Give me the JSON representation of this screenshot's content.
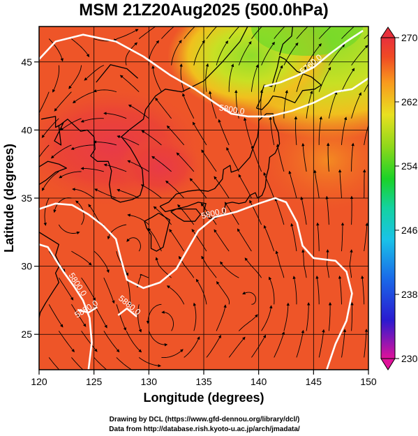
{
  "chart_data": {
    "type": "heatmap",
    "title": "MSM 21Z20Aug2025 (500.0hPa)",
    "xlabel": "Longitude (degrees)",
    "ylabel": "Latitude  (degrees)",
    "xlim": [
      120,
      150
    ],
    "ylim": [
      22.4,
      47.6
    ],
    "x_ticks": [
      "120",
      "125",
      "130",
      "135",
      "140",
      "145",
      "150"
    ],
    "y_ticks": [
      "25",
      "30",
      "35",
      "40",
      "45"
    ],
    "colorbar": {
      "min": 230,
      "max": 270,
      "ticks": [
        "270",
        "262",
        "254",
        "246",
        "238",
        "230"
      ],
      "colors": [
        "#e0129a",
        "#1a1ad0",
        "#1aa9e8",
        "#14d2a8",
        "#19d21e",
        "#8ed81a",
        "#e8e020",
        "#f89a1e",
        "#f04a24",
        "#e8303c"
      ]
    },
    "contours": [
      {
        "label": "5800.0",
        "points": [
          [
            120,
            34.2
          ],
          [
            121.5,
            34.6
          ],
          [
            123,
            34.5
          ],
          [
            124.5,
            33.8
          ],
          [
            125.8,
            33
          ],
          [
            127,
            32
          ],
          [
            127.5,
            30.4
          ],
          [
            128,
            29
          ],
          [
            129.5,
            28.4
          ],
          [
            131,
            28.8
          ],
          [
            132.5,
            29.8
          ],
          [
            133.5,
            31.2
          ],
          [
            134.5,
            32.6
          ],
          [
            136,
            33.6
          ],
          [
            138,
            34
          ],
          [
            140,
            34.6
          ],
          [
            141.5,
            35
          ],
          [
            142.5,
            34.7
          ],
          [
            143.5,
            33.2
          ],
          [
            144,
            31.5
          ],
          [
            145,
            30.6
          ],
          [
            147,
            30.4
          ],
          [
            148,
            29.6
          ],
          [
            148.5,
            28
          ],
          [
            148,
            26
          ],
          [
            147,
            24.3
          ],
          [
            146.2,
            22.4
          ]
        ]
      },
      {
        "label": "5800.0",
        "points": [
          [
            120,
            31.6
          ],
          [
            120.8,
            31.4
          ],
          [
            121.5,
            30.5
          ],
          [
            122.3,
            29.5
          ],
          [
            123.2,
            28.5
          ],
          [
            124,
            27.5
          ],
          [
            124.6,
            26.2
          ],
          [
            124.8,
            24.4
          ],
          [
            124.5,
            22.4
          ]
        ]
      },
      {
        "label": "5800.0",
        "points": [
          [
            120,
            45.2
          ],
          [
            121.5,
            46.5
          ],
          [
            124,
            47
          ],
          [
            127,
            46.5
          ],
          [
            129.5,
            45.4
          ],
          [
            132,
            44
          ],
          [
            134.2,
            43
          ],
          [
            136,
            42
          ],
          [
            137.5,
            41.2
          ],
          [
            139,
            41
          ],
          [
            141,
            41
          ],
          [
            143,
            41.4
          ],
          [
            145,
            42
          ],
          [
            147,
            42.8
          ],
          [
            148.5,
            43
          ],
          [
            150,
            43.8
          ]
        ]
      },
      {
        "label": "5760.0",
        "points": [
          [
            140.5,
            43.2
          ],
          [
            142,
            43.5
          ],
          [
            143.5,
            44
          ],
          [
            145,
            44.6
          ],
          [
            146.5,
            45.6
          ],
          [
            148,
            46.5
          ],
          [
            149.5,
            47.3
          ]
        ]
      },
      {
        "label": "5880.0",
        "points": [
          [
            123.5,
            26.8
          ],
          [
            124.5,
            26.6
          ],
          [
            125.3,
            27
          ]
        ]
      },
      {
        "label": "5880.0",
        "points": [
          [
            127.2,
            26.4
          ],
          [
            128,
            26.9
          ],
          [
            128.9,
            26.3
          ]
        ]
      }
    ],
    "vortices": [
      {
        "lon": 122.5,
        "lat": 33.8,
        "lat_span": 3.0
      },
      {
        "lon": 128.7,
        "lat": 31.5,
        "lat_span": 2.2
      },
      {
        "lon": 131.5,
        "lat": 25.6,
        "lat_span": 3.5
      },
      {
        "lon": 139.5,
        "lat": 27.5,
        "lat_span": 2.5
      }
    ],
    "coastlines": [
      [
        [
          120.2,
          40.8
        ],
        [
          121.5,
          41
        ],
        [
          121.5,
          40.2
        ],
        [
          122.2,
          40.5
        ],
        [
          121.4,
          39.2
        ],
        [
          122,
          38.9
        ],
        [
          121.8,
          40.3
        ],
        [
          122.6,
          40.8
        ],
        [
          123.8,
          39.9
        ],
        [
          124.4,
          40
        ],
        [
          125,
          39.5
        ],
        [
          125.1,
          38.6
        ],
        [
          124.7,
          38.1
        ],
        [
          125.3,
          37.7
        ],
        [
          126.3,
          37.7
        ],
        [
          126.6,
          37
        ],
        [
          126.4,
          36
        ],
        [
          126.6,
          35
        ],
        [
          127.4,
          34.7
        ],
        [
          128.5,
          34.9
        ],
        [
          129.2,
          35.2
        ],
        [
          129.5,
          36
        ],
        [
          129.4,
          37.1
        ],
        [
          128.8,
          38
        ],
        [
          128.3,
          38.7
        ],
        [
          127.5,
          39.5
        ],
        [
          128.2,
          40
        ],
        [
          129.5,
          40.8
        ],
        [
          129.7,
          41.5
        ],
        [
          130.6,
          42.5
        ],
        [
          131.5,
          43
        ],
        [
          133,
          42.8
        ],
        [
          135,
          43.6
        ],
        [
          136.7,
          45
        ],
        [
          138.3,
          46.5
        ],
        [
          139,
          47.6
        ]
      ],
      [
        [
          120,
          36
        ],
        [
          120.6,
          36.3
        ],
        [
          121.5,
          36.9
        ],
        [
          122.5,
          37.2
        ],
        [
          121.8,
          37.5
        ],
        [
          120.8,
          37.7
        ],
        [
          119.8,
          37.2
        ]
      ],
      [
        [
          120,
          32.5
        ],
        [
          121,
          32
        ],
        [
          121.8,
          31.6
        ],
        [
          121.5,
          30.8
        ],
        [
          121.9,
          30.1
        ],
        [
          121.5,
          29.5
        ],
        [
          121.8,
          28.8
        ],
        [
          121.3,
          28.2
        ],
        [
          120.6,
          27.3
        ],
        [
          120.1,
          26.6
        ],
        [
          120,
          26.2
        ]
      ],
      [
        [
          130.9,
          33.9
        ],
        [
          131.9,
          33.4
        ],
        [
          131.6,
          32.4
        ],
        [
          131.3,
          31.4
        ],
        [
          130.7,
          31.1
        ],
        [
          130.2,
          31.3
        ],
        [
          130.2,
          32.3
        ],
        [
          129.8,
          32.8
        ],
        [
          129.6,
          33.3
        ],
        [
          130.3,
          33.6
        ],
        [
          130.9,
          33.9
        ]
      ],
      [
        [
          132.0,
          34
        ],
        [
          132.6,
          33.6
        ],
        [
          133.2,
          33.3
        ],
        [
          134.2,
          33.3
        ],
        [
          134.7,
          33.8
        ],
        [
          134.3,
          34.2
        ],
        [
          133.5,
          34.2
        ],
        [
          132.5,
          34.2
        ],
        [
          132.0,
          34
        ]
      ],
      [
        [
          131,
          34.4
        ],
        [
          131.8,
          34.7
        ],
        [
          132.5,
          35.3
        ],
        [
          133.5,
          35.5
        ],
        [
          134.5,
          35.6
        ],
        [
          135.4,
          35.5
        ],
        [
          136,
          35.7
        ],
        [
          136.7,
          36.4
        ],
        [
          136.8,
          37.1
        ],
        [
          137.4,
          37.4
        ],
        [
          137.5,
          36.9
        ],
        [
          138.2,
          37.1
        ],
        [
          139.2,
          38
        ],
        [
          139.5,
          38.7
        ],
        [
          139.9,
          39.5
        ],
        [
          140,
          40.2
        ],
        [
          140,
          40.7
        ],
        [
          140.7,
          41.2
        ],
        [
          141.3,
          41.2
        ],
        [
          141.4,
          40.6
        ],
        [
          141.8,
          39.8
        ],
        [
          141.9,
          39
        ],
        [
          141.5,
          38.3
        ],
        [
          141,
          38
        ],
        [
          140.9,
          37.2
        ],
        [
          140.7,
          36.6
        ],
        [
          140.6,
          35.8
        ],
        [
          140.3,
          35.2
        ],
        [
          139.9,
          35
        ],
        [
          139.7,
          35.4
        ],
        [
          139.2,
          35.2
        ],
        [
          138.8,
          34.7
        ],
        [
          138.2,
          34.6
        ],
        [
          137.6,
          34.7
        ],
        [
          137,
          34.6
        ],
        [
          136.9,
          34.3
        ],
        [
          136.8,
          33.8
        ],
        [
          136,
          33.5
        ],
        [
          135.5,
          33.5
        ],
        [
          135,
          34
        ],
        [
          135.2,
          34.6
        ],
        [
          134.5,
          34.7
        ],
        [
          133.5,
          34.4
        ],
        [
          132.5,
          34.2
        ],
        [
          131.5,
          34
        ],
        [
          131,
          34.4
        ]
      ],
      [
        [
          139.8,
          41.6
        ],
        [
          140.2,
          42.3
        ],
        [
          140.3,
          42.8
        ],
        [
          140.5,
          43.3
        ],
        [
          141.2,
          43.2
        ],
        [
          141.4,
          43.8
        ],
        [
          141.7,
          44.6
        ],
        [
          141.9,
          45.4
        ],
        [
          142.4,
          45.2
        ],
        [
          143.5,
          44.3
        ],
        [
          144.8,
          43.9
        ],
        [
          145.4,
          43.5
        ],
        [
          145.7,
          43.3
        ],
        [
          145.1,
          43
        ],
        [
          144,
          42.9
        ],
        [
          143.3,
          42
        ],
        [
          142.1,
          42.4
        ],
        [
          141.3,
          42.5
        ],
        [
          140.9,
          42
        ],
        [
          140.3,
          41.5
        ],
        [
          139.8,
          41.6
        ]
      ],
      [
        [
          141.9,
          45.5
        ],
        [
          142.2,
          46.3
        ],
        [
          142.6,
          46.6
        ],
        [
          143,
          46.9
        ],
        [
          143.1,
          47.6
        ]
      ],
      [
        [
          125.2,
          43.5
        ],
        [
          126.5,
          44.8
        ],
        [
          128,
          44.5
        ],
        [
          129,
          43.8
        ]
      ]
    ],
    "footer": {
      "line1": "Drawing by DCL (https://www.gfd-dennou.org/library/dcl/)",
      "line2": "Data from http://database.rish.kyoto-u.ac.jp/arch/jmadata/"
    }
  }
}
